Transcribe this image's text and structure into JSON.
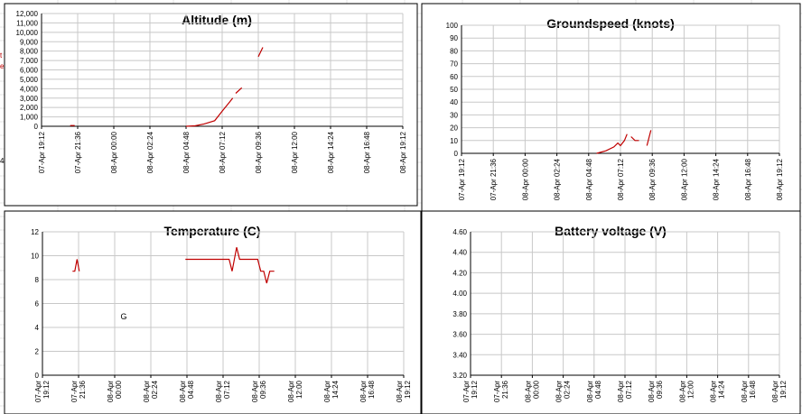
{
  "sheet_fragments": {
    "left_edge_top": "t",
    "left_edge_mid": "e",
    "left_edge_low": "4:"
  },
  "chart_data": [
    {
      "type": "line",
      "title": "Altitude (m)",
      "xlabel": "",
      "ylabel": "",
      "ylim": [
        0,
        12000
      ],
      "y_ticks": [
        "0",
        "1,000",
        "2,000",
        "3,000",
        "4,000",
        "5,000",
        "6,000",
        "7,000",
        "8,000",
        "9,000",
        "10,000",
        "11,000",
        "12,000"
      ],
      "x_ticks": [
        "07-Apr 19:12",
        "07-Apr 21:36",
        "08-Apr 00:00",
        "08-Apr 02:24",
        "08-Apr 04:48",
        "08-Apr 07:12",
        "08-Apr 09:36",
        "08-Apr 12:00",
        "08-Apr 14:24",
        "08-Apr 16:48",
        "08-Apr 19:12"
      ],
      "xlim_hours": [
        0,
        24
      ],
      "grid": true,
      "color": "#c00000",
      "series": [
        {
          "segments": [
            [
              [
                1.9,
                80
              ],
              [
                2.2,
                80
              ]
            ],
            [
              [
                9.6,
                0
              ],
              [
                10.2,
                50
              ],
              [
                10.8,
                250
              ],
              [
                11.5,
                600
              ],
              [
                12.0,
                1600
              ],
              [
                12.7,
                3000
              ]
            ],
            [
              [
                12.9,
                3500
              ],
              [
                13.3,
                4100
              ]
            ],
            [
              [
                14.4,
                7400
              ],
              [
                14.7,
                8400
              ]
            ]
          ]
        }
      ]
    },
    {
      "type": "line",
      "title": "Groundspeed (knots)",
      "xlabel": "",
      "ylabel": "",
      "ylim": [
        0,
        100
      ],
      "y_ticks": [
        "0",
        "10",
        "20",
        "30",
        "40",
        "50",
        "60",
        "70",
        "80",
        "90",
        "100"
      ],
      "x_ticks": [
        "07-Apr 19:12",
        "07-Apr 21:36",
        "08-Apr 00:00",
        "08-Apr 02:24",
        "08-Apr 04:48",
        "08-Apr 07:12",
        "08-Apr 09:36",
        "08-Apr 12:00",
        "08-Apr 14:24",
        "08-Apr 16:48",
        "08-Apr 19:12"
      ],
      "xlim_hours": [
        0,
        24
      ],
      "grid": true,
      "color": "#c00000",
      "series": [
        {
          "segments": [
            [
              [
                10.2,
                0
              ],
              [
                10.9,
                2
              ],
              [
                11.5,
                5
              ],
              [
                11.8,
                8
              ],
              [
                12.0,
                6
              ],
              [
                12.3,
                10
              ],
              [
                12.5,
                15
              ]
            ],
            [
              [
                12.8,
                13
              ],
              [
                13.1,
                10
              ],
              [
                13.4,
                10
              ]
            ],
            [
              [
                14.0,
                6
              ],
              [
                14.3,
                18
              ]
            ]
          ]
        }
      ]
    },
    {
      "type": "line",
      "title": "Temperature (C)",
      "xlabel": "",
      "ylabel": "",
      "ylim": [
        0,
        12
      ],
      "y_ticks": [
        "0",
        "2",
        "4",
        "6",
        "8",
        "10",
        "12"
      ],
      "x_ticks": [
        "07-Apr 19:12",
        "07-Apr 21:36",
        "08-Apr 00:00",
        "08-Apr 02:24",
        "08-Apr 04:48",
        "08-Apr 07:12",
        "08-Apr 09:36",
        "08-Apr 12:00",
        "08-Apr 14:24",
        "08-Apr 16:48",
        "08-Apr 19:12"
      ],
      "xlim_hours": [
        0,
        24
      ],
      "grid": true,
      "color": "#c00000",
      "annotation": "G",
      "annotation_at": [
        5.4,
        4.9
      ],
      "series": [
        {
          "segments": [
            [
              [
                2.0,
                8.7
              ],
              [
                2.15,
                8.7
              ],
              [
                2.3,
                9.7
              ],
              [
                2.45,
                8.7
              ]
            ],
            [
              [
                9.5,
                9.7
              ],
              [
                12.4,
                9.7
              ],
              [
                12.6,
                8.7
              ],
              [
                12.9,
                10.7
              ],
              [
                13.1,
                9.7
              ],
              [
                14.3,
                9.7
              ],
              [
                14.5,
                8.7
              ],
              [
                14.7,
                8.7
              ],
              [
                14.9,
                7.7
              ],
              [
                15.1,
                8.7
              ],
              [
                15.4,
                8.7
              ]
            ]
          ]
        }
      ]
    },
    {
      "type": "line",
      "title": "Battery voltage (V)",
      "xlabel": "",
      "ylabel": "",
      "ylim": [
        3.2,
        4.6
      ],
      "y_ticks": [
        "3.20",
        "3.40",
        "3.60",
        "3.80",
        "4.00",
        "4.20",
        "4.40",
        "4.60"
      ],
      "x_ticks": [
        "07-Apr 19:12",
        "07-Apr 21:36",
        "08-Apr 00:00",
        "08-Apr 02:24",
        "08-Apr 04:48",
        "08-Apr 07:12",
        "08-Apr 09:36",
        "08-Apr 12:00",
        "08-Apr 14:24",
        "08-Apr 16:48",
        "08-Apr 19:12"
      ],
      "xlim_hours": [
        0,
        24
      ],
      "grid": true,
      "color": "#c00000",
      "series": []
    }
  ]
}
